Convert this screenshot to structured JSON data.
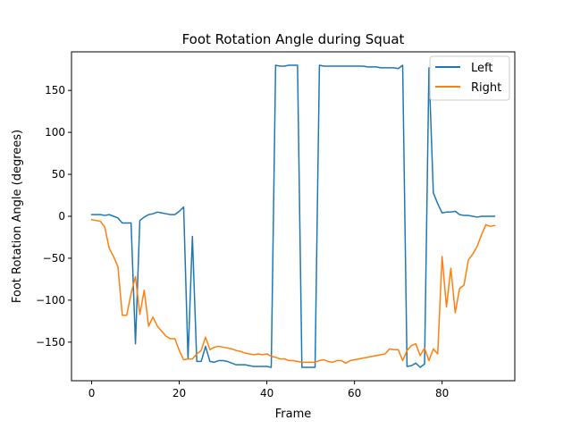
{
  "chart_data": {
    "type": "line",
    "title": "Foot Rotation Angle during Squat",
    "xlabel": "Frame",
    "ylabel": "Foot Rotation Angle (degrees)",
    "xlim": [
      -4.6,
      96.6
    ],
    "ylim": [
      -196,
      196
    ],
    "x_ticks": [
      0,
      20,
      40,
      60,
      80
    ],
    "y_ticks": [
      -150,
      -100,
      -50,
      0,
      50,
      100,
      150
    ],
    "grid": false,
    "legend_position": "top-right",
    "x": [
      0,
      1,
      2,
      3,
      4,
      5,
      6,
      7,
      8,
      9,
      10,
      11,
      12,
      13,
      14,
      15,
      16,
      17,
      18,
      19,
      20,
      21,
      22,
      23,
      24,
      25,
      26,
      27,
      28,
      29,
      30,
      31,
      32,
      33,
      34,
      35,
      36,
      37,
      38,
      39,
      40,
      41,
      42,
      43,
      44,
      45,
      46,
      47,
      48,
      49,
      50,
      51,
      52,
      53,
      54,
      55,
      56,
      57,
      58,
      59,
      60,
      61,
      62,
      63,
      64,
      65,
      66,
      67,
      68,
      69,
      70,
      71,
      72,
      73,
      74,
      75,
      76,
      77,
      78,
      79,
      80,
      81,
      82,
      83,
      84,
      85,
      86,
      87,
      88,
      89,
      90,
      91,
      92
    ],
    "series": [
      {
        "name": "Left",
        "color": "#1f77b4",
        "values": [
          2,
          2,
          2,
          1,
          2,
          0,
          -2,
          -8,
          -8,
          -8,
          -152,
          -5,
          -1,
          2,
          3,
          5,
          4,
          3,
          2,
          2,
          6,
          11,
          -170,
          -24,
          -173,
          -173,
          -155,
          -173,
          -174,
          -172,
          -172,
          -173,
          -175,
          -177,
          -177,
          -177,
          -178,
          -179,
          -179,
          -179,
          -179,
          -180,
          180,
          179,
          179,
          180,
          180,
          180,
          -180,
          -180,
          -180,
          -180,
          180,
          179,
          179,
          179,
          179,
          179,
          179,
          179,
          179,
          179,
          179,
          178,
          178,
          178,
          177,
          177,
          177,
          177,
          176,
          180,
          -179,
          -178,
          -175,
          -180,
          -176,
          177,
          28,
          15,
          4,
          5,
          5,
          6,
          2,
          1,
          1,
          0,
          -1,
          0,
          0,
          0,
          0
        ]
      },
      {
        "name": "Right",
        "color": "#ff7f0e",
        "values": [
          -4,
          -5,
          -6,
          -13,
          -38,
          -48,
          -60,
          -118,
          -118,
          -92,
          -72,
          -117,
          -88,
          -131,
          -120,
          -131,
          -137,
          -143,
          -146,
          -146,
          -160,
          -171,
          -170,
          -170,
          -164,
          -160,
          -144,
          -159,
          -156,
          -155,
          -156,
          -157,
          -158,
          -160,
          -161,
          -163,
          -164,
          -165,
          -164,
          -165,
          -164,
          -167,
          -168,
          -170,
          -170,
          -172,
          -172,
          -173,
          -174,
          -174,
          -174,
          -174,
          -172,
          -171,
          -173,
          -174,
          -172,
          -172,
          -175,
          -172,
          -171,
          -170,
          -169,
          -168,
          -167,
          -166,
          -165,
          -164,
          -158,
          -159,
          -159,
          -172,
          -160,
          -154,
          -152,
          -166,
          -157,
          -172,
          -158,
          -164,
          -48,
          -108,
          -62,
          -115,
          -86,
          -82,
          -52,
          -45,
          -36,
          -22,
          -10,
          -12,
          -11
        ]
      }
    ]
  }
}
